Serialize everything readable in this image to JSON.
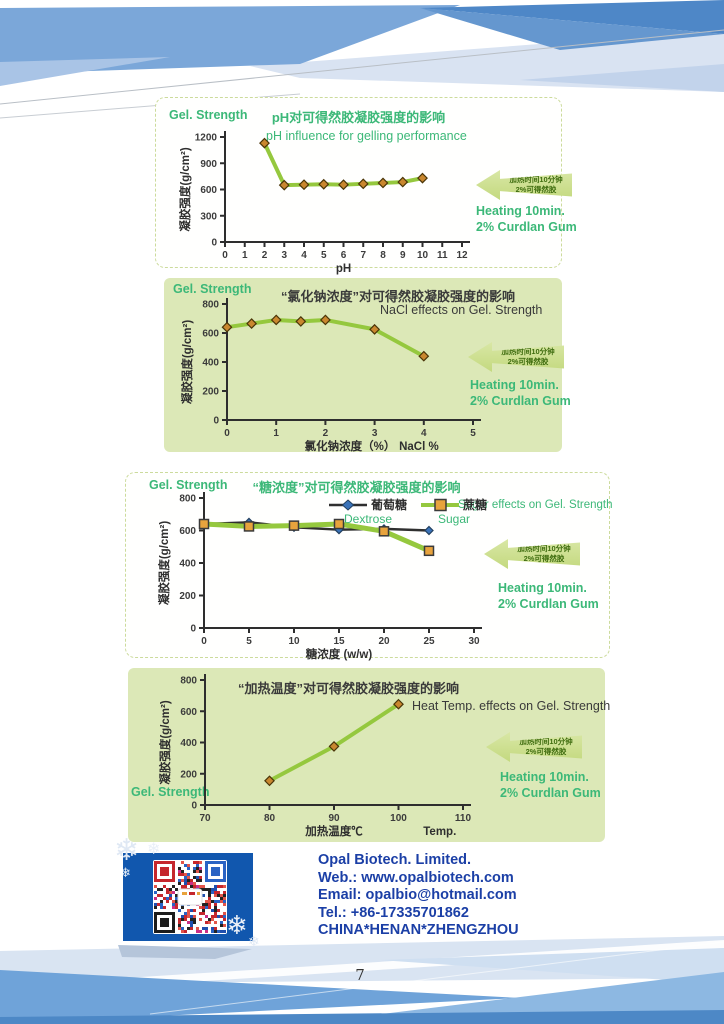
{
  "page_number": "7",
  "colors": {
    "accent_green": "#3cb878",
    "line_green": "#95c83e",
    "panel_green": "#dce8b7",
    "contact_blue": "#1b3fa6",
    "qr_blue": "#1157ae"
  },
  "annotations": {
    "gel_strength": "Gel. Strength",
    "arrow_line1": "加热时间10分钟",
    "arrow_line2": "2%可得然胶",
    "heating_line1": "Heating 10min.",
    "heating_line2": "2% Curdlan Gum"
  },
  "contact": {
    "lines": [
      "Opal Biotech. Limited.",
      "Web.: www.opalbiotech.com",
      "Email: opalbio@hotmail.com",
      "Tel.: +86-17335701862",
      "CHINA*HENAN*ZHENGZHOU"
    ]
  },
  "chart_data": [
    {
      "type": "line",
      "panel": "white",
      "title": "pH对可得然胶凝胶强度的影响",
      "subtitle": "pH influence for gelling performance",
      "ylabel": "凝胶强度(g/cm²)",
      "xlabel": "pH",
      "xlim": [
        0,
        12
      ],
      "ylim": [
        0,
        1200
      ],
      "xticks": [
        0,
        1,
        2,
        3,
        4,
        5,
        6,
        7,
        8,
        9,
        10,
        11,
        12
      ],
      "yticks": [
        0,
        300,
        600,
        900,
        1200
      ],
      "grid": false,
      "series": [
        {
          "name": "Gel strength vs pH",
          "x": [
            2,
            3,
            4,
            5,
            6,
            7,
            8,
            9,
            10
          ],
          "values": [
            1130,
            650,
            655,
            660,
            655,
            665,
            675,
            685,
            730
          ],
          "line_color": "#95c83e",
          "line_width": 4,
          "marker": "diamond",
          "marker_color": "#c9872f",
          "marker_stroke": "#4a3508"
        }
      ]
    },
    {
      "type": "line",
      "panel": "green",
      "title": "“氯化钠浓度”对可得然胶凝胶强度的影响",
      "subtitle": "NaCl effects on Gel. Strength",
      "ylabel": "凝胶强度(g/cm²)",
      "xlabel": "氯化钠浓度（%）",
      "xlabel_extra": "NaCl %",
      "xlim": [
        0,
        5
      ],
      "ylim": [
        0,
        800
      ],
      "xticks": [
        0,
        1,
        2,
        3,
        4,
        5
      ],
      "yticks": [
        0,
        200,
        400,
        600,
        800
      ],
      "grid": false,
      "series": [
        {
          "name": "Gel strength vs NaCl",
          "x": [
            0,
            0.5,
            1,
            1.5,
            2,
            3,
            4
          ],
          "values": [
            640,
            665,
            690,
            680,
            690,
            625,
            440
          ],
          "line_color": "#95c83e",
          "line_width": 4,
          "marker": "diamond",
          "marker_color": "#c9872f",
          "marker_stroke": "#4a3508"
        }
      ]
    },
    {
      "type": "line",
      "panel": "white",
      "title": "“糖浓度”对可得然胶凝胶强度的影响",
      "subtitle": "Sugar effects on Gel. Strength",
      "ylabel": "凝胶强度(g/cm²)",
      "xlabel": "糖浓度  (w/w)",
      "xlim": [
        0,
        30
      ],
      "ylim": [
        0,
        800
      ],
      "xticks": [
        0,
        5,
        10,
        15,
        20,
        25,
        30
      ],
      "yticks": [
        0,
        200,
        400,
        600,
        800
      ],
      "grid": false,
      "legend": [
        {
          "label": "葡萄糖",
          "sublabel": "Dextrose"
        },
        {
          "label": "蔗糖",
          "sublabel": "Sugar"
        }
      ],
      "series": [
        {
          "name": "Dextrose",
          "x": [
            0,
            5,
            10,
            15,
            20,
            25
          ],
          "values": [
            640,
            650,
            620,
            605,
            610,
            600
          ],
          "line_color": "#2f2f2f",
          "line_width": 2.5,
          "marker": "diamond",
          "marker_color": "#3a72b8",
          "marker_stroke": "#23405f",
          "marker_size": 4
        },
        {
          "name": "Sugar",
          "x": [
            0,
            5,
            10,
            15,
            20,
            25
          ],
          "values": [
            640,
            625,
            630,
            640,
            595,
            475
          ],
          "line_color": "#95c83e",
          "line_width": 5,
          "marker": "square",
          "marker_color": "#e8a33d",
          "marker_stroke": "#3a3a3a"
        }
      ]
    },
    {
      "type": "line",
      "panel": "green",
      "title": "“加热温度”对可得然胶凝胶强度的影响",
      "subtitle": "Heat Temp. effects on Gel. Strength",
      "ylabel": "凝胶强度(g/cm²)",
      "xlabel": "加热温度℃",
      "xlabel_extra": "Temp.",
      "xlim": [
        70,
        110
      ],
      "ylim": [
        0,
        800
      ],
      "xticks": [
        70,
        80,
        90,
        100,
        110
      ],
      "yticks": [
        0,
        200,
        400,
        600,
        800
      ],
      "grid": false,
      "series": [
        {
          "name": "Gel strength vs heating temperature",
          "x": [
            80,
            90,
            100
          ],
          "values": [
            155,
            375,
            645
          ],
          "line_color": "#95c83e",
          "line_width": 4,
          "marker": "diamond",
          "marker_color": "#c9872f",
          "marker_stroke": "#4a3508"
        }
      ]
    }
  ]
}
